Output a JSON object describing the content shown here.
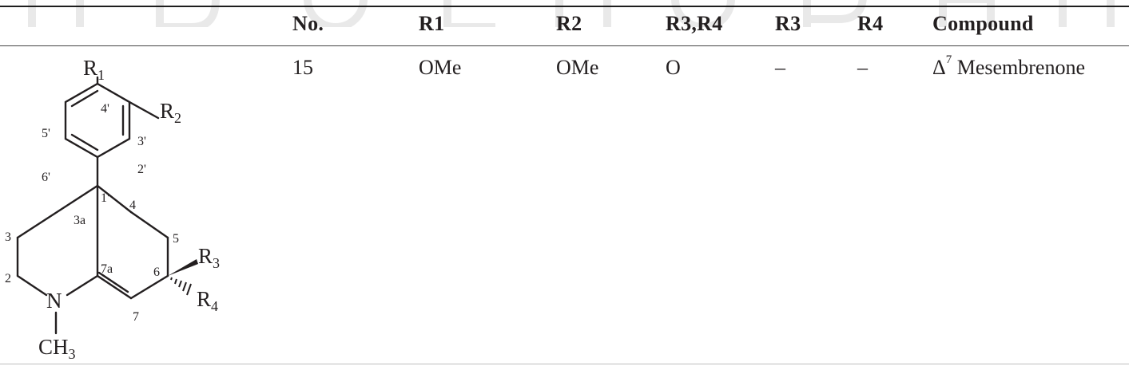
{
  "table": {
    "headers": [
      "No.",
      "R1",
      "R2",
      "R3,R4",
      "R3",
      "R4",
      "Compound"
    ],
    "rows": [
      {
        "no": "15",
        "r1": "OMe",
        "r2": "OMe",
        "r3r4": "O",
        "r3": "–",
        "r4": "–",
        "compound_prefix": "Δ",
        "compound_sup": "7",
        "compound_name": "Mesembrenone"
      }
    ]
  },
  "structure": {
    "labels": {
      "R1": "R",
      "R1_sub": "1",
      "R2": "R",
      "R2_sub": "2",
      "R3": "R",
      "R3_sub": "3",
      "R4": "R",
      "R4_sub": "4",
      "N": "N",
      "CH3": "CH",
      "CH3_sub": "3",
      "p4": "4'",
      "p3": "3'",
      "p2": "2'",
      "p1": "1'",
      "p5": "5'",
      "p6": "6'",
      "n3a": "3a",
      "n4": "4",
      "n5": "5",
      "n3": "3",
      "n7a": "7a",
      "n6": "6",
      "n2": "2",
      "n7": "7"
    }
  }
}
